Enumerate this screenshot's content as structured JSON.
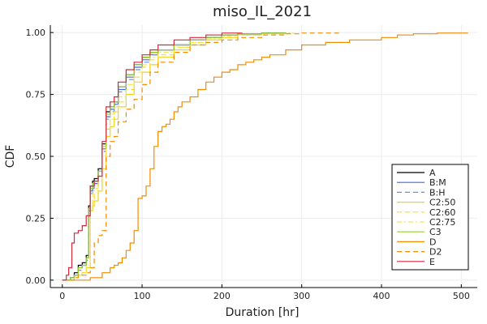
{
  "chart_data": {
    "type": "line",
    "title": "miso_IL_2021",
    "xlabel": "Duration [hr]",
    "ylabel": "CDF",
    "xlim": [
      -15,
      520
    ],
    "ylim": [
      -0.03,
      1.03
    ],
    "xticks": [
      0,
      100,
      200,
      300,
      400,
      500
    ],
    "yticks": [
      0.0,
      0.25,
      0.5,
      0.75,
      1.0
    ],
    "xtick_labels": [
      "0",
      "100",
      "200",
      "300",
      "400",
      "500"
    ],
    "ytick_labels": [
      "0.00",
      "0.25",
      "0.50",
      "0.75",
      "1.00"
    ],
    "grid": true,
    "legend_position": "bottom-right",
    "series": [
      {
        "name": "A",
        "color": "#000000",
        "dash": "solid",
        "x": [
          0,
          10,
          15,
          20,
          25,
          30,
          33,
          35,
          38,
          40,
          45,
          50,
          55,
          60,
          65,
          70,
          80,
          90,
          100,
          110,
          120,
          140,
          160,
          180,
          200,
          220,
          250,
          280
        ],
        "y": [
          0,
          0.01,
          0.03,
          0.06,
          0.07,
          0.1,
          0.3,
          0.38,
          0.4,
          0.41,
          0.45,
          0.55,
          0.68,
          0.7,
          0.72,
          0.78,
          0.83,
          0.87,
          0.9,
          0.92,
          0.93,
          0.95,
          0.97,
          0.98,
          0.99,
          0.995,
          0.998,
          1.0
        ]
      },
      {
        "name": "B:M",
        "color": "#4169e1",
        "dash": "solid",
        "x": [
          0,
          10,
          15,
          20,
          25,
          30,
          33,
          35,
          38,
          40,
          45,
          50,
          55,
          60,
          65,
          70,
          80,
          90,
          100,
          110,
          120,
          140,
          160,
          180,
          200,
          220,
          250,
          275
        ],
        "y": [
          0,
          0.01,
          0.02,
          0.05,
          0.06,
          0.09,
          0.28,
          0.36,
          0.38,
          0.39,
          0.44,
          0.53,
          0.66,
          0.69,
          0.71,
          0.77,
          0.82,
          0.86,
          0.89,
          0.91,
          0.93,
          0.95,
          0.97,
          0.98,
          0.99,
          0.995,
          0.998,
          1.0
        ]
      },
      {
        "name": "B:H",
        "color": "#6a8ee0",
        "dash": "dashed",
        "x": [
          0,
          10,
          15,
          20,
          25,
          30,
          33,
          35,
          38,
          40,
          45,
          50,
          55,
          60,
          65,
          70,
          80,
          90,
          100,
          110,
          120,
          140,
          160,
          180,
          200,
          220,
          250,
          278
        ],
        "y": [
          0,
          0.01,
          0.02,
          0.04,
          0.06,
          0.08,
          0.27,
          0.35,
          0.37,
          0.38,
          0.43,
          0.52,
          0.65,
          0.68,
          0.7,
          0.76,
          0.81,
          0.85,
          0.88,
          0.91,
          0.93,
          0.95,
          0.97,
          0.98,
          0.99,
          0.995,
          0.998,
          1.0
        ]
      },
      {
        "name": "C2:50",
        "color": "#f2d21b",
        "dash": "solid",
        "x": [
          0,
          10,
          15,
          20,
          25,
          30,
          35,
          38,
          40,
          45,
          50,
          55,
          60,
          65,
          70,
          80,
          90,
          100,
          110,
          120,
          140,
          160,
          180,
          200,
          220,
          250,
          280
        ],
        "y": [
          0,
          0.0,
          0.01,
          0.02,
          0.03,
          0.05,
          0.28,
          0.3,
          0.32,
          0.36,
          0.45,
          0.58,
          0.62,
          0.65,
          0.7,
          0.75,
          0.8,
          0.84,
          0.87,
          0.9,
          0.93,
          0.95,
          0.97,
          0.98,
          0.99,
          0.995,
          1.0
        ]
      },
      {
        "name": "C2:60",
        "color": "#f5dc2a",
        "dash": "dashed",
        "x": [
          0,
          10,
          15,
          20,
          25,
          30,
          35,
          38,
          40,
          45,
          50,
          55,
          60,
          65,
          70,
          80,
          90,
          100,
          110,
          120,
          140,
          160,
          180,
          200,
          220,
          250,
          285
        ],
        "y": [
          0,
          0.0,
          0.01,
          0.02,
          0.03,
          0.05,
          0.3,
          0.33,
          0.35,
          0.4,
          0.48,
          0.61,
          0.65,
          0.68,
          0.72,
          0.77,
          0.82,
          0.86,
          0.89,
          0.91,
          0.94,
          0.96,
          0.97,
          0.98,
          0.99,
          0.995,
          1.0
        ]
      },
      {
        "name": "C2:75",
        "color": "#f7e45a",
        "dash": "dashdot",
        "x": [
          0,
          10,
          15,
          20,
          25,
          30,
          35,
          38,
          40,
          45,
          50,
          55,
          60,
          65,
          70,
          80,
          90,
          100,
          110,
          120,
          140,
          160,
          180,
          200,
          220,
          250,
          290
        ],
        "y": [
          0,
          0.0,
          0.01,
          0.02,
          0.03,
          0.06,
          0.32,
          0.35,
          0.37,
          0.42,
          0.5,
          0.63,
          0.67,
          0.7,
          0.74,
          0.79,
          0.84,
          0.87,
          0.9,
          0.92,
          0.94,
          0.96,
          0.975,
          0.985,
          0.99,
          0.997,
          1.0
        ]
      },
      {
        "name": "C3",
        "color": "#9acd32",
        "dash": "solid",
        "x": [
          0,
          10,
          15,
          20,
          25,
          30,
          33,
          35,
          38,
          40,
          45,
          50,
          55,
          60,
          65,
          70,
          80,
          90,
          100,
          110,
          120,
          140,
          160,
          180,
          200,
          220,
          250,
          280
        ],
        "y": [
          0,
          0.01,
          0.02,
          0.05,
          0.06,
          0.09,
          0.29,
          0.37,
          0.39,
          0.4,
          0.44,
          0.54,
          0.67,
          0.7,
          0.72,
          0.78,
          0.83,
          0.87,
          0.9,
          0.92,
          0.93,
          0.95,
          0.97,
          0.98,
          0.99,
          0.995,
          0.998,
          1.0
        ]
      },
      {
        "name": "D",
        "color": "#f28c00",
        "dash": "solid",
        "x": [
          0,
          25,
          35,
          50,
          60,
          65,
          70,
          75,
          80,
          85,
          90,
          95,
          100,
          105,
          110,
          115,
          120,
          125,
          130,
          135,
          140,
          145,
          150,
          160,
          170,
          180,
          190,
          200,
          210,
          220,
          230,
          240,
          250,
          260,
          280,
          300,
          330,
          360,
          400,
          420,
          440,
          470,
          508
        ],
        "y": [
          0,
          0,
          0.01,
          0.03,
          0.05,
          0.06,
          0.07,
          0.09,
          0.12,
          0.15,
          0.2,
          0.33,
          0.34,
          0.38,
          0.45,
          0.54,
          0.6,
          0.62,
          0.63,
          0.65,
          0.68,
          0.7,
          0.72,
          0.74,
          0.77,
          0.8,
          0.82,
          0.84,
          0.85,
          0.87,
          0.88,
          0.89,
          0.9,
          0.91,
          0.93,
          0.95,
          0.96,
          0.97,
          0.98,
          0.99,
          0.995,
          0.998,
          1.0
        ]
      },
      {
        "name": "D2",
        "color": "#f28c00",
        "dash": "dashed",
        "x": [
          0,
          10,
          15,
          20,
          25,
          30,
          35,
          40,
          45,
          50,
          55,
          60,
          65,
          70,
          80,
          90,
          100,
          110,
          120,
          140,
          160,
          180,
          200,
          220,
          250,
          280,
          300,
          350
        ],
        "y": [
          0,
          0.0,
          0.01,
          0.02,
          0.02,
          0.03,
          0.05,
          0.15,
          0.18,
          0.2,
          0.5,
          0.56,
          0.58,
          0.64,
          0.69,
          0.73,
          0.79,
          0.84,
          0.88,
          0.92,
          0.95,
          0.96,
          0.97,
          0.98,
          0.99,
          0.995,
          0.998,
          1.0
        ]
      },
      {
        "name": "E",
        "color": "#d6293e",
        "dash": "solid",
        "x": [
          0,
          5,
          8,
          12,
          15,
          20,
          25,
          30,
          35,
          40,
          45,
          50,
          55,
          60,
          65,
          70,
          80,
          90,
          100,
          110,
          120,
          140,
          160,
          180,
          200,
          225
        ],
        "y": [
          0,
          0.02,
          0.05,
          0.15,
          0.19,
          0.2,
          0.22,
          0.26,
          0.38,
          0.4,
          0.42,
          0.56,
          0.7,
          0.72,
          0.74,
          0.8,
          0.85,
          0.88,
          0.91,
          0.93,
          0.95,
          0.97,
          0.98,
          0.99,
          0.998,
          1.0
        ]
      }
    ]
  }
}
